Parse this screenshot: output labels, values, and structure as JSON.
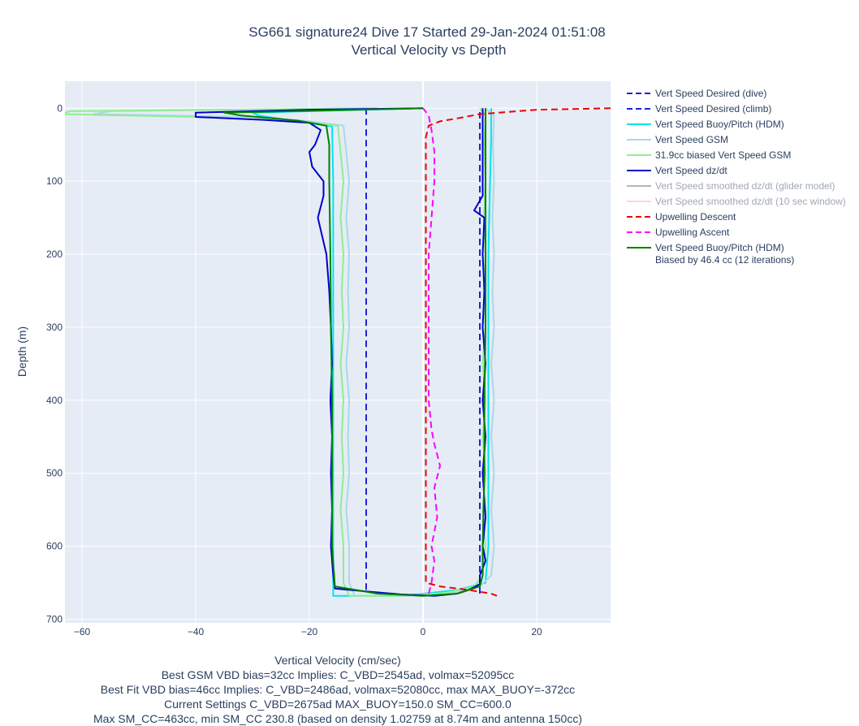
{
  "chart_data": {
    "type": "line",
    "title": "SG661 signature24 Dive 17 Started 29-Jan-2024 01:51:08",
    "subtitle": "Vertical Velocity vs Depth",
    "xlabel": "Vertical Velocity (cm/sec)",
    "ylabel": "Depth (m)",
    "xlim": [
      -63,
      33
    ],
    "ylim": [
      705,
      -37
    ],
    "y_reversed": true,
    "x_ticks": [
      -60,
      -40,
      -20,
      0,
      20
    ],
    "y_ticks": [
      0,
      100,
      200,
      300,
      400,
      500,
      600,
      700
    ],
    "grid": true,
    "legend_position": "right",
    "footnotes": [
      "Best GSM VBD bias=32cc Implies: C_VBD=2545ad, volmax=52095cc",
      "Best Fit VBD bias=46cc Implies: C_VBD=2486ad, volmax=52080cc, max MAX_BUOY=-372cc",
      "Current Settings C_VBD=2675ad MAX_BUOY=150.0 SM_CC=600.0",
      "Max SM_CC=463cc, min SM_CC 230.8 (based on density 1.02759 at 8.74m and antenna 150cc)"
    ],
    "series": [
      {
        "name": "Vert Speed Desired (dive)",
        "color": "#1f1fdd",
        "dash": "dash",
        "visible": true,
        "points": [
          [
            -10,
            0
          ],
          [
            -10,
            200
          ],
          [
            -10,
            400
          ],
          [
            -10,
            600
          ],
          [
            -10,
            665
          ]
        ]
      },
      {
        "name": "Vert Speed Desired (climb)",
        "color": "#1f1fdd",
        "dash": "dash",
        "visible": true,
        "points": [
          [
            10,
            665
          ],
          [
            10,
            400
          ],
          [
            10,
            200
          ],
          [
            10,
            0
          ]
        ]
      },
      {
        "name": "Vert Speed Buoy/Pitch (HDM)",
        "color": "#00e5ee",
        "dash": "solid",
        "visible": true,
        "points": [
          [
            0,
            0
          ],
          [
            -30,
            6
          ],
          [
            -29,
            10
          ],
          [
            -22,
            18
          ],
          [
            -16,
            25
          ],
          [
            -15.8,
            100
          ],
          [
            -15.8,
            300
          ],
          [
            -15.8,
            500
          ],
          [
            -15.8,
            600
          ],
          [
            -15.8,
            668
          ],
          [
            -4,
            668
          ],
          [
            -1,
            666
          ],
          [
            6,
            660
          ],
          [
            11,
            650
          ],
          [
            11.5,
            600
          ],
          [
            11.5,
            400
          ],
          [
            11.5,
            200
          ],
          [
            11.8,
            100
          ],
          [
            12,
            40
          ],
          [
            12,
            0
          ]
        ]
      },
      {
        "name": "Vert Speed GSM",
        "color": "#add8e6",
        "dash": "solid",
        "visible": true,
        "points": [
          [
            -10,
            0
          ],
          [
            -55,
            4
          ],
          [
            -58,
            8
          ],
          [
            -30,
            12
          ],
          [
            -20,
            18
          ],
          [
            -14,
            24
          ],
          [
            -13.5,
            60
          ],
          [
            -13,
            100
          ],
          [
            -13.5,
            150
          ],
          [
            -13,
            200
          ],
          [
            -13.2,
            250
          ],
          [
            -13,
            300
          ],
          [
            -13.5,
            350
          ],
          [
            -13,
            400
          ],
          [
            -13.2,
            450
          ],
          [
            -13,
            500
          ],
          [
            -13.5,
            550
          ],
          [
            -13,
            600
          ],
          [
            -13,
            650
          ],
          [
            -12,
            668
          ],
          [
            -3,
            668
          ],
          [
            5,
            664
          ],
          [
            10,
            655
          ],
          [
            12,
            640
          ],
          [
            12.5,
            600
          ],
          [
            12,
            550
          ],
          [
            12.5,
            500
          ],
          [
            12,
            450
          ],
          [
            12.5,
            400
          ],
          [
            12,
            350
          ],
          [
            12.5,
            300
          ],
          [
            12.2,
            250
          ],
          [
            12.5,
            200
          ],
          [
            12.2,
            150
          ],
          [
            12.5,
            100
          ],
          [
            12.3,
            50
          ],
          [
            12.5,
            10
          ],
          [
            11,
            0
          ]
        ]
      },
      {
        "name": "31.9cc biased Vert Speed GSM",
        "color": "#90ee90",
        "dash": "solid",
        "visible": true,
        "points": [
          [
            -8,
            0
          ],
          [
            -62,
            4
          ],
          [
            -64,
            8
          ],
          [
            -40,
            12
          ],
          [
            -22,
            18
          ],
          [
            -15,
            24
          ],
          [
            -14.5,
            60
          ],
          [
            -14,
            100
          ],
          [
            -14.5,
            150
          ],
          [
            -14,
            200
          ],
          [
            -14.3,
            250
          ],
          [
            -14,
            300
          ],
          [
            -14.5,
            350
          ],
          [
            -14,
            400
          ],
          [
            -14.3,
            450
          ],
          [
            -14,
            500
          ],
          [
            -14.5,
            550
          ],
          [
            -14,
            600
          ],
          [
            -14,
            650
          ],
          [
            -13,
            668
          ],
          [
            -4,
            668
          ],
          [
            4,
            664
          ],
          [
            9,
            655
          ],
          [
            10.5,
            640
          ],
          [
            11,
            600
          ],
          [
            10.5,
            550
          ],
          [
            11,
            500
          ],
          [
            10.5,
            450
          ],
          [
            11,
            400
          ],
          [
            10.5,
            350
          ],
          [
            11,
            300
          ],
          [
            10.7,
            250
          ],
          [
            11,
            200
          ],
          [
            10.7,
            150
          ],
          [
            11,
            100
          ],
          [
            10.8,
            50
          ],
          [
            11,
            10
          ],
          [
            10,
            0
          ]
        ]
      },
      {
        "name": "Vert Speed dz/dt",
        "color": "#0000cd",
        "dash": "solid",
        "visible": true,
        "points": [
          [
            0,
            0
          ],
          [
            -20,
            2
          ],
          [
            -40,
            6
          ],
          [
            -40,
            12
          ],
          [
            -28,
            16
          ],
          [
            -20,
            20
          ],
          [
            -18,
            30
          ],
          [
            -19,
            50
          ],
          [
            -20,
            60
          ],
          [
            -19.5,
            80
          ],
          [
            -17.5,
            100
          ],
          [
            -17.5,
            120
          ],
          [
            -18.5,
            150
          ],
          [
            -17,
            200
          ],
          [
            -16.5,
            250
          ],
          [
            -16.2,
            300
          ],
          [
            -16,
            350
          ],
          [
            -16.3,
            400
          ],
          [
            -16,
            450
          ],
          [
            -16.2,
            500
          ],
          [
            -16,
            550
          ],
          [
            -16.2,
            600
          ],
          [
            -15.8,
            640
          ],
          [
            -15.5,
            658
          ],
          [
            -10,
            662
          ],
          [
            -4,
            666
          ],
          [
            2,
            668
          ],
          [
            6,
            665
          ],
          [
            8,
            660
          ],
          [
            10,
            652
          ],
          [
            10,
            640
          ],
          [
            11,
            620
          ],
          [
            10.5,
            600
          ],
          [
            11,
            560
          ],
          [
            10.5,
            500
          ],
          [
            11,
            450
          ],
          [
            10.5,
            400
          ],
          [
            11,
            350
          ],
          [
            10.5,
            300
          ],
          [
            10.8,
            250
          ],
          [
            10.5,
            200
          ],
          [
            10.8,
            150
          ],
          [
            9,
            140
          ],
          [
            10.5,
            120
          ],
          [
            10.5,
            60
          ],
          [
            10.5,
            20
          ],
          [
            10.5,
            0
          ]
        ]
      },
      {
        "name": "Vert Speed smoothed dz/dt (glider model)",
        "color": "#808080",
        "dash": "solid",
        "visible": false,
        "points": []
      },
      {
        "name": "Vert Speed smoothed dz/dt (10 sec window)",
        "color": "#ffb6c1",
        "dash": "solid",
        "visible": false,
        "points": []
      },
      {
        "name": "Upwelling Descent",
        "color": "#ee0000",
        "dash": "dash",
        "visible": true,
        "points": [
          [
            33,
            0
          ],
          [
            20,
            2
          ],
          [
            10,
            8
          ],
          [
            6,
            14
          ],
          [
            3,
            18
          ],
          [
            1,
            24
          ],
          [
            0.5,
            40
          ],
          [
            0.5,
            100
          ],
          [
            0.5,
            200
          ],
          [
            0.5,
            300
          ],
          [
            0.5,
            400
          ],
          [
            0.5,
            500
          ],
          [
            0.5,
            600
          ],
          [
            0.5,
            650
          ],
          [
            3,
            655
          ],
          [
            8,
            660
          ],
          [
            12,
            665
          ],
          [
            13,
            668
          ]
        ]
      },
      {
        "name": "Upwelling Ascent",
        "color": "#ff00ff",
        "dash": "dash",
        "visible": true,
        "points": [
          [
            1,
            665
          ],
          [
            1.5,
            650
          ],
          [
            2,
            620
          ],
          [
            1.5,
            600
          ],
          [
            2.5,
            560
          ],
          [
            2,
            520
          ],
          [
            3,
            490
          ],
          [
            2,
            460
          ],
          [
            1.5,
            440
          ],
          [
            1,
            400
          ],
          [
            1,
            350
          ],
          [
            1,
            300
          ],
          [
            1,
            250
          ],
          [
            1,
            200
          ],
          [
            1.5,
            150
          ],
          [
            2,
            100
          ],
          [
            2,
            60
          ],
          [
            1.5,
            30
          ],
          [
            1,
            10
          ],
          [
            0,
            0
          ]
        ]
      },
      {
        "name": "Vert Speed Buoy/Pitch (HDM) Biased by 46.4 cc (12 iterations)",
        "color": "#008000",
        "dash": "solid",
        "visible": true,
        "legend_lines": [
          "Vert Speed Buoy/Pitch (HDM)",
          "Biased by 46.4 cc (12 iterations)"
        ],
        "points": [
          [
            0,
            0
          ],
          [
            -35,
            6
          ],
          [
            -32,
            10
          ],
          [
            -22,
            17
          ],
          [
            -17,
            24
          ],
          [
            -16.5,
            50
          ],
          [
            -16.5,
            100
          ],
          [
            -16.3,
            200
          ],
          [
            -16.2,
            300
          ],
          [
            -16,
            400
          ],
          [
            -16,
            500
          ],
          [
            -16,
            600
          ],
          [
            -15.5,
            655
          ],
          [
            -8,
            665
          ],
          [
            0,
            668
          ],
          [
            6,
            665
          ],
          [
            10,
            655
          ],
          [
            10.5,
            640
          ],
          [
            10.5,
            600
          ],
          [
            10.8,
            500
          ],
          [
            10.8,
            400
          ],
          [
            11,
            300
          ],
          [
            11,
            200
          ],
          [
            11,
            100
          ],
          [
            11,
            40
          ],
          [
            11,
            0
          ]
        ]
      }
    ]
  }
}
